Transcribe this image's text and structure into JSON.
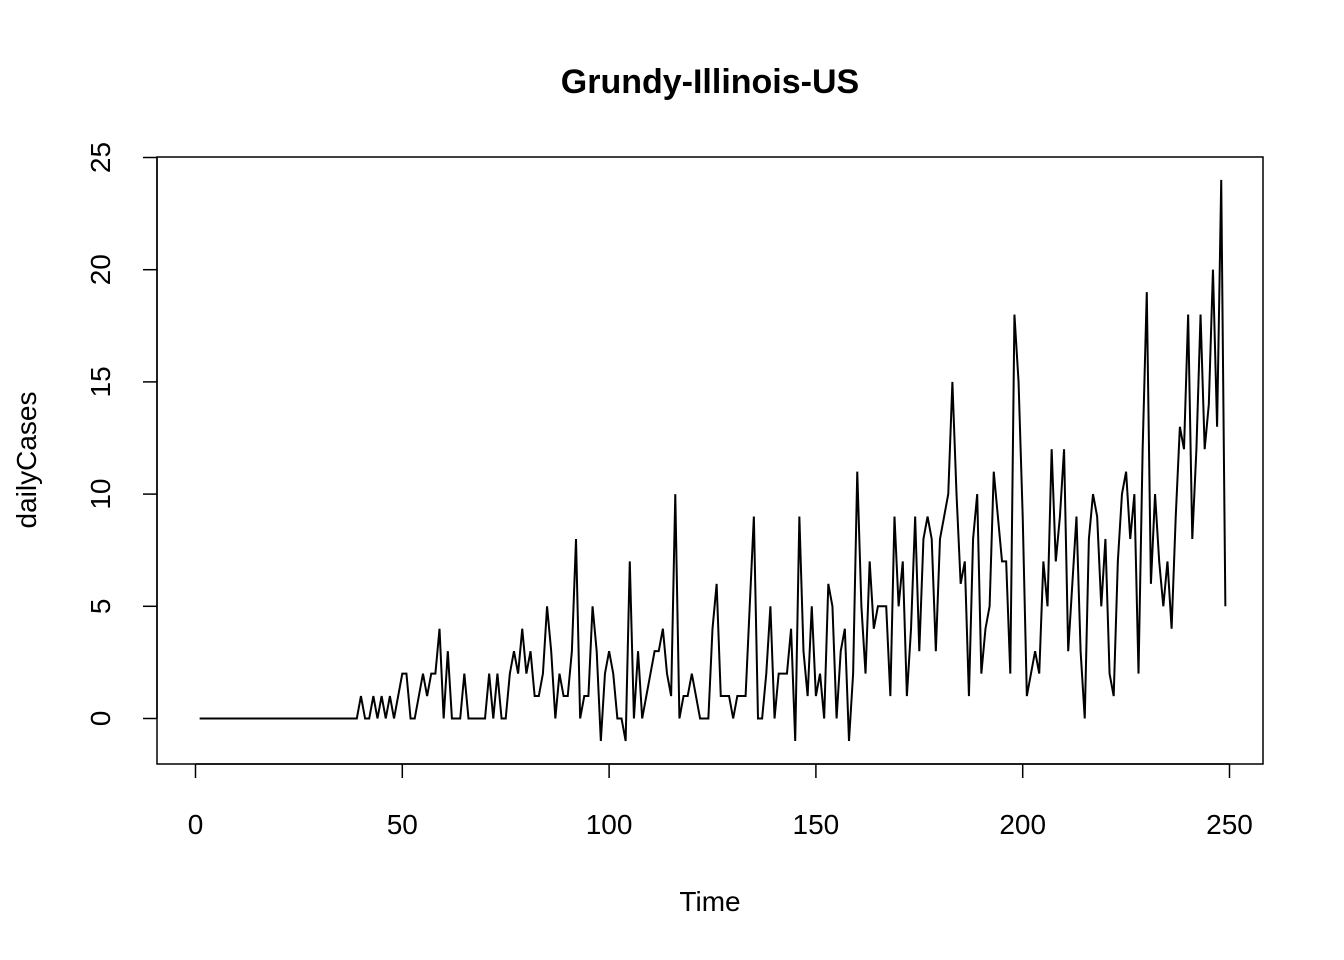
{
  "chart_data": {
    "type": "line",
    "title": "Grundy-Illinois-US",
    "xlabel": "Time",
    "ylabel": "dailyCases",
    "xlim": [
      1,
      248
    ],
    "ylim": [
      -2,
      25
    ],
    "x_ticks": [
      0,
      50,
      100,
      150,
      200,
      250
    ],
    "y_ticks": [
      0,
      5,
      10,
      15,
      20,
      25
    ],
    "grid": false,
    "legend": "none",
    "line_color": "#000000",
    "series": [
      {
        "x_start": 1,
        "values": [
          0,
          0,
          0,
          0,
          0,
          0,
          0,
          0,
          0,
          0,
          0,
          0,
          0,
          0,
          0,
          0,
          0,
          0,
          0,
          0,
          0,
          0,
          0,
          0,
          0,
          0,
          0,
          0,
          0,
          0,
          0,
          0,
          0,
          0,
          0,
          0,
          0,
          0,
          0,
          1,
          0,
          0,
          1,
          0,
          1,
          0,
          1,
          0,
          1,
          2,
          2,
          0,
          0,
          1,
          2,
          1,
          2,
          2,
          4,
          0,
          3,
          0,
          0,
          0,
          2,
          0,
          0,
          0,
          0,
          0,
          2,
          0,
          2,
          0,
          0,
          2,
          3,
          2,
          4,
          2,
          3,
          1,
          1,
          2,
          5,
          3,
          0,
          2,
          1,
          1,
          3,
          8,
          0,
          1,
          1,
          5,
          3,
          -1,
          2,
          3,
          2,
          0,
          0,
          -1,
          7,
          0,
          3,
          0,
          1,
          2,
          3,
          3,
          4,
          2,
          1,
          10,
          0,
          1,
          1,
          2,
          1,
          0,
          0,
          0,
          4,
          6,
          1,
          1,
          1,
          0,
          1,
          1,
          1,
          5,
          9,
          0,
          0,
          2,
          5,
          0,
          2,
          2,
          2,
          4,
          -1,
          9,
          3,
          1,
          5,
          1,
          2,
          0,
          6,
          5,
          0,
          3,
          4,
          -1,
          2,
          11,
          5,
          2,
          7,
          4,
          5,
          5,
          5,
          1,
          9,
          5,
          7,
          1,
          4,
          9,
          3,
          8,
          9,
          8,
          3,
          8,
          9,
          10,
          15,
          10,
          6,
          7,
          1,
          8,
          10,
          2,
          4,
          5,
          11,
          9,
          7,
          7,
          2,
          18,
          15,
          9,
          1,
          2,
          3,
          2,
          7,
          5,
          12,
          7,
          9,
          12,
          3,
          6,
          9,
          3,
          0,
          8,
          10,
          9,
          5,
          8,
          2,
          1,
          7,
          10,
          11,
          8,
          10,
          2,
          12,
          19,
          6,
          10,
          7,
          5,
          7,
          4,
          9,
          13,
          12,
          18,
          8,
          12,
          18,
          12,
          14,
          20,
          13,
          24,
          5
        ]
      }
    ]
  }
}
